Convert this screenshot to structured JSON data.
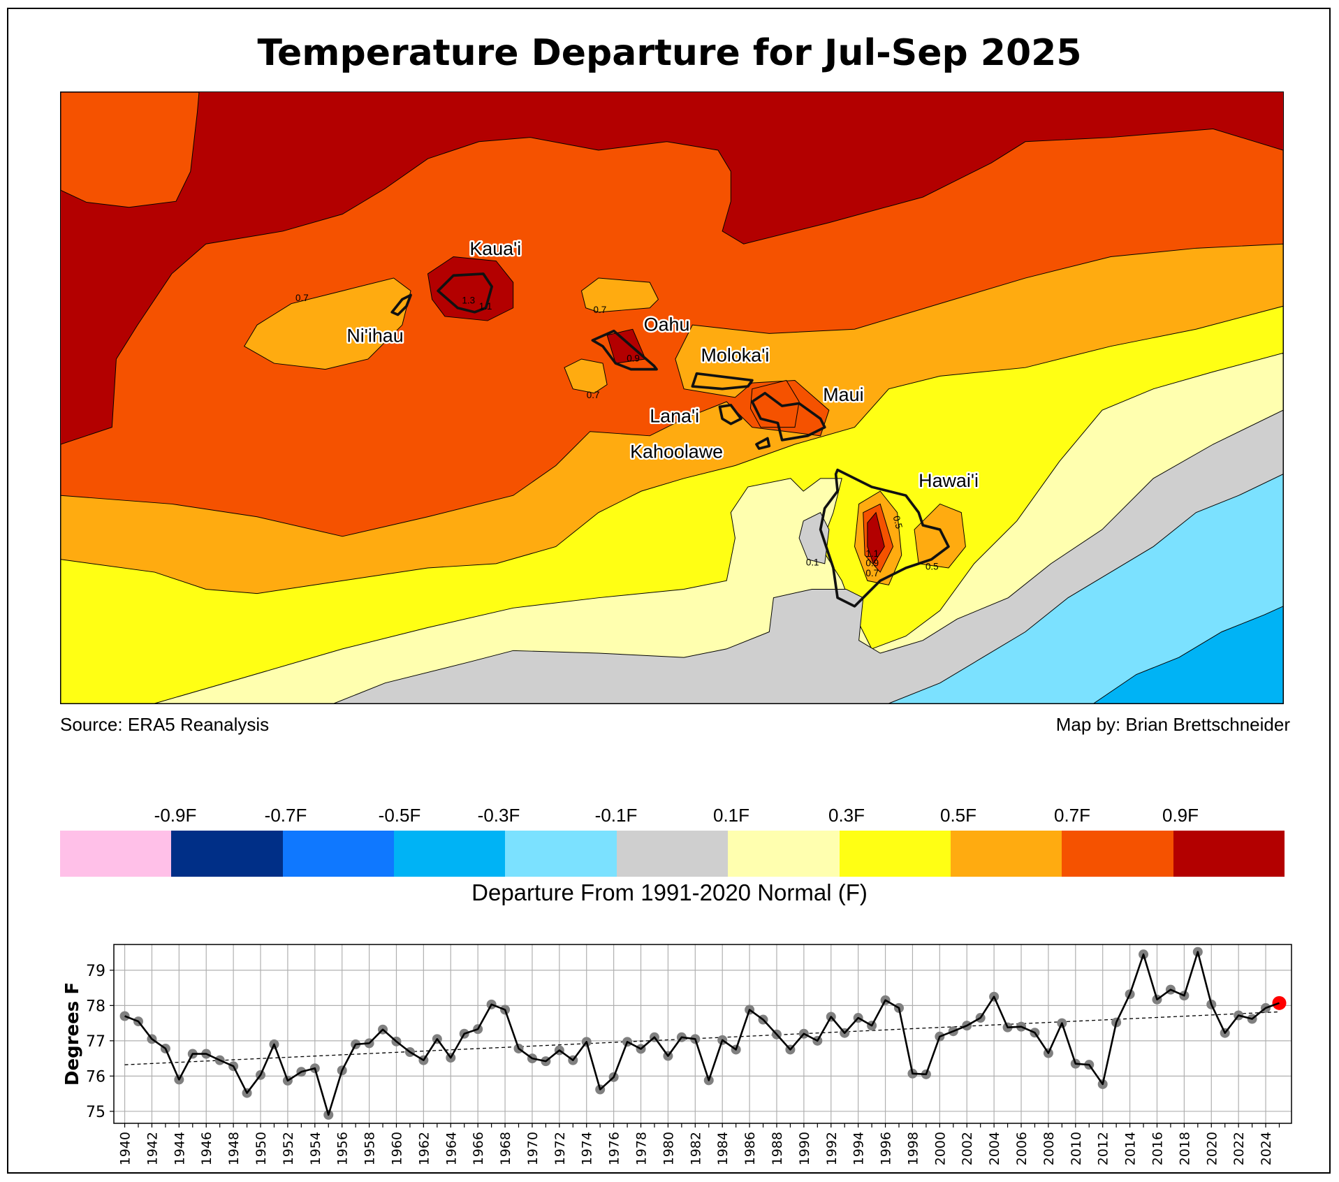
{
  "title": "Temperature Departure for Jul-Sep 2025",
  "source_label": "Source: ERA5 Reanalysis",
  "credit_label": "Map by: Brian Brettschneider",
  "map": {
    "islands": [
      {
        "name": "Kaua'i"
      },
      {
        "name": "Ni'ihau"
      },
      {
        "name": "Oahu"
      },
      {
        "name": "Moloka'i"
      },
      {
        "name": "Maui"
      },
      {
        "name": "Lana'i"
      },
      {
        "name": "Kahoolawe"
      },
      {
        "name": "Hawai'i"
      }
    ],
    "contour_labels": [
      "0.7",
      "0.7",
      "0.7",
      "0.9",
      "1.3",
      "1.1",
      "0.5",
      "0.5",
      "0.1",
      "1.1",
      "0.9",
      "0.7"
    ]
  },
  "colorbar": {
    "ticks": [
      "-0.9F",
      "-0.7F",
      "-0.5F",
      "-0.3F",
      "-0.1F",
      "0.1F",
      "0.3F",
      "0.5F",
      "0.7F",
      "0.9F"
    ],
    "colors": [
      "#ffc0e8",
      "#002f87",
      "#0f78ff",
      "#00b3f5",
      "#7be1ff",
      "#cfcfcf",
      "#ffffaf",
      "#ffff14",
      "#ffab10",
      "#f55200",
      "#b30000"
    ],
    "title": "Departure From 1991-2020 Normal (F)"
  },
  "chart_data": {
    "type": "line",
    "title": "",
    "xlabel": "",
    "ylabel": "Degrees F",
    "ylim": [
      74.66,
      79.73
    ],
    "yticks": [
      75,
      76,
      77,
      78,
      79
    ],
    "xlim": [
      1939.2,
      2025.9
    ],
    "grid": true,
    "x_start": 1940,
    "values": [
      77.7,
      77.55,
      77.05,
      76.78,
      75.9,
      76.63,
      76.63,
      76.45,
      76.28,
      75.52,
      76.03,
      76.9,
      75.87,
      76.12,
      76.22,
      74.9,
      76.16,
      76.9,
      76.93,
      77.32,
      76.98,
      76.68,
      76.45,
      77.05,
      76.52,
      77.2,
      77.33,
      78.03,
      77.88,
      76.78,
      76.5,
      76.42,
      76.73,
      76.45,
      76.97,
      75.62,
      75.97,
      76.97,
      76.77,
      77.1,
      76.57,
      77.1,
      77.05,
      75.88,
      77.02,
      76.75,
      77.88,
      77.6,
      77.18,
      76.75,
      77.2,
      77.0,
      77.68,
      77.22,
      77.65,
      77.43,
      78.15,
      77.93,
      76.07,
      76.05,
      77.12,
      77.27,
      77.43,
      77.65,
      78.25,
      77.38,
      77.4,
      77.23,
      76.65,
      77.5,
      76.35,
      76.32,
      75.77,
      77.52,
      78.32,
      79.45,
      78.17,
      78.45,
      78.28,
      79.52,
      78.03,
      77.22,
      77.72,
      77.62,
      77.93,
      78.07
    ],
    "trend": {
      "start": [
        1940,
        76.32
      ],
      "end": [
        2025,
        77.82
      ]
    },
    "highlight_color": "#ff0000",
    "point_color": "#808080"
  }
}
